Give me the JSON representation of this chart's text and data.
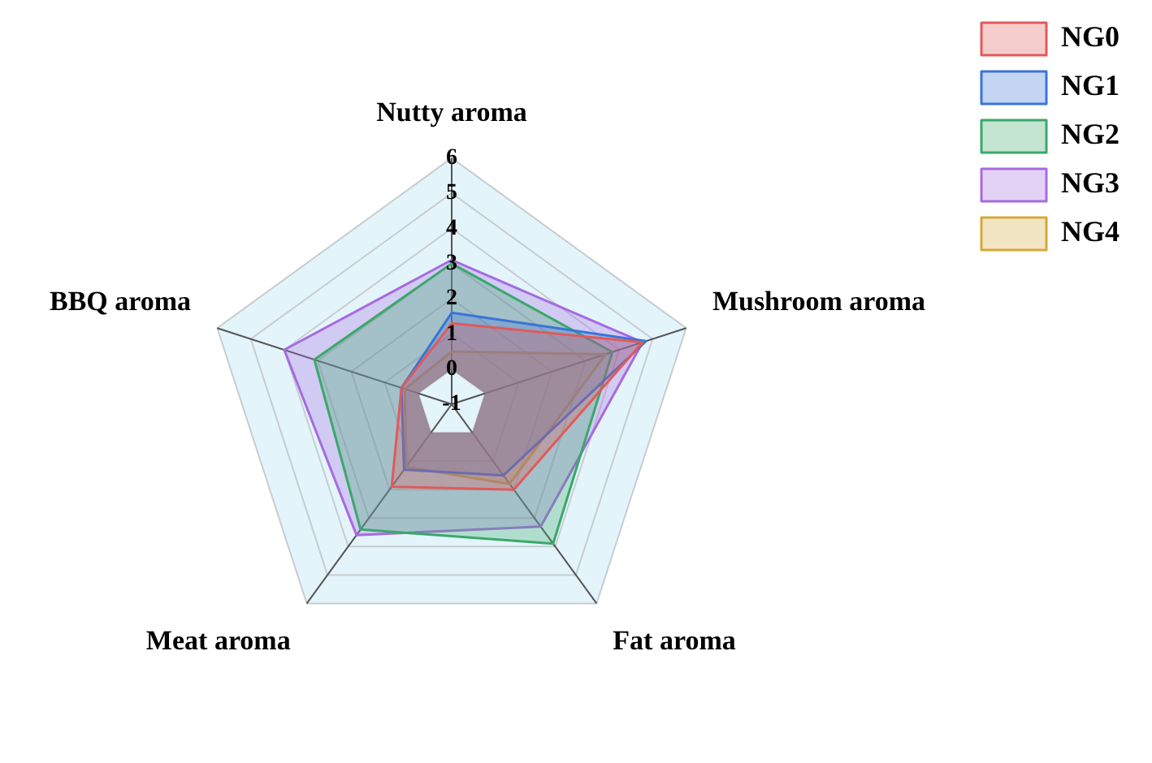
{
  "chart_data": {
    "type": "radar",
    "categories": [
      "Nutty aroma",
      "Mushroom aroma",
      "Fat aroma",
      "Meat aroma",
      "BBQ aroma"
    ],
    "series": [
      {
        "name": "NG0",
        "color": "#e05a5a",
        "values": [
          1.3,
          4.7,
          2.0,
          1.9,
          0.5
        ]
      },
      {
        "name": "NG1",
        "color": "#3a75d6",
        "values": [
          1.6,
          4.8,
          1.5,
          1.3,
          0.5
        ]
      },
      {
        "name": "NG2",
        "color": "#3aa86a",
        "values": [
          3.0,
          3.8,
          3.9,
          3.4,
          3.1
        ]
      },
      {
        "name": "NG3",
        "color": "#a66be0",
        "values": [
          3.1,
          4.7,
          3.3,
          3.6,
          4.0
        ]
      },
      {
        "name": "NG4",
        "color": "#d4a93a",
        "values": [
          0.5,
          3.6,
          1.8,
          1.2,
          0.4
        ]
      }
    ],
    "ylim": [
      -1,
      6
    ],
    "yticks": [
      -1,
      0,
      1,
      2,
      3,
      4,
      5,
      6
    ],
    "grid": true,
    "legend": "top right",
    "marker": "none"
  }
}
